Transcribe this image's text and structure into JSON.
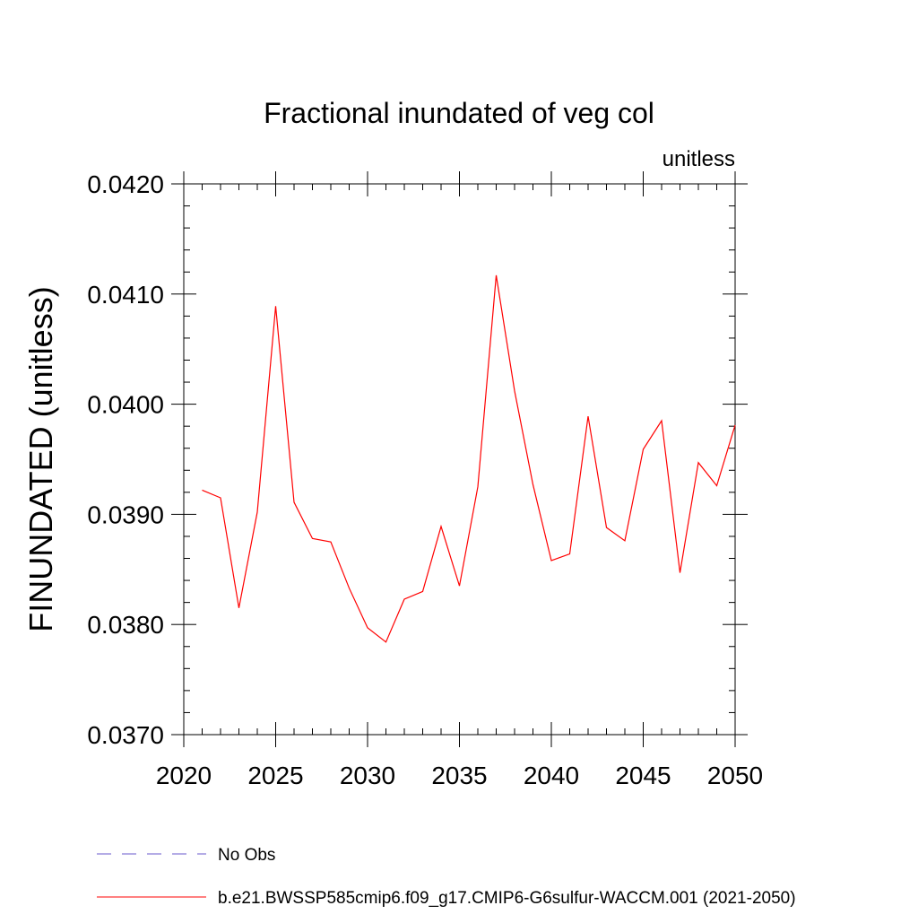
{
  "chart_data": {
    "type": "line",
    "title": "Fractional inundated of veg col",
    "units_label": "unitless",
    "ylabel": "FINUNDATED  (unitless)",
    "xlabel": "",
    "xlim": [
      2020,
      2050
    ],
    "ylim": [
      0.037,
      0.042
    ],
    "x_ticks": [
      2020,
      2025,
      2030,
      2035,
      2040,
      2045,
      2050
    ],
    "y_ticks": [
      0.037,
      0.038,
      0.039,
      0.04,
      0.041,
      0.042
    ],
    "x_tick_labels": [
      "2020",
      "2025",
      "2030",
      "2035",
      "2040",
      "2045",
      "2050"
    ],
    "y_tick_labels": [
      "0.0370",
      "0.0380",
      "0.0390",
      "0.0400",
      "0.0410",
      "0.0420"
    ],
    "grid": false,
    "legend_position": "bottom",
    "series": [
      {
        "name": "b.e21.BWSSP585cmip6.f09_g17.CMIP6-G6sulfur-WACCM.001 (2021-2050)",
        "color": "#ff0000",
        "style": "solid",
        "x": [
          2021,
          2022,
          2023,
          2024,
          2025,
          2026,
          2027,
          2028,
          2029,
          2030,
          2031,
          2032,
          2033,
          2034,
          2035,
          2036,
          2037,
          2038,
          2039,
          2040,
          2041,
          2042,
          2043,
          2044,
          2045,
          2046,
          2047,
          2048,
          2049,
          2050
        ],
        "values": [
          0.03922,
          0.03915,
          0.03815,
          0.03902,
          0.04089,
          0.03911,
          0.03878,
          0.03875,
          0.03833,
          0.03797,
          0.03784,
          0.03823,
          0.0383,
          0.03889,
          0.03835,
          0.03925,
          0.04117,
          0.04012,
          0.03927,
          0.03858,
          0.03864,
          0.03989,
          0.03888,
          0.03876,
          0.03959,
          0.03985,
          0.03847,
          0.03947,
          0.03926,
          0.03981
        ]
      }
    ],
    "legend": [
      {
        "label": "No Obs",
        "color": "#6a5acd",
        "style": "dashed"
      },
      {
        "label": "b.e21.BWSSP585cmip6.f09_g17.CMIP6-G6sulfur-WACCM.001 (2021-2050)",
        "color": "#ff0000",
        "style": "solid"
      }
    ]
  }
}
